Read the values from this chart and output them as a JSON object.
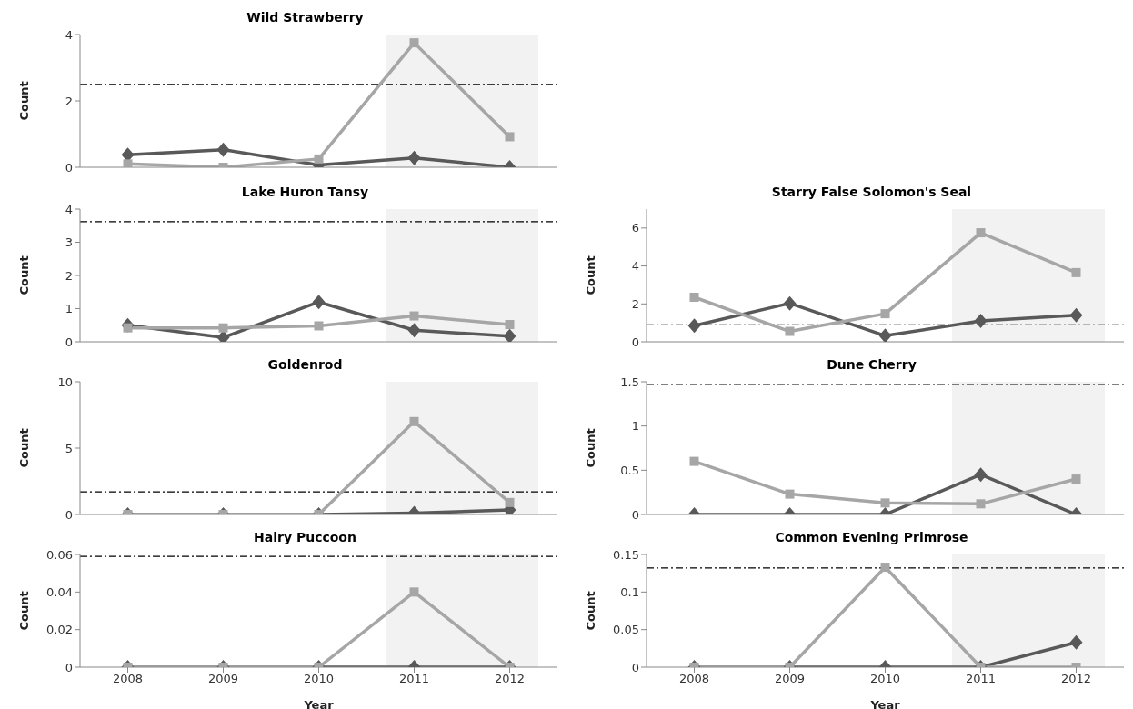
{
  "chart_data": [
    {
      "type": "line",
      "title": "Wild Strawberry",
      "ylabel": "Count",
      "categories": [
        "2008",
        "2009",
        "2010",
        "2011",
        "2012"
      ],
      "ylim": [
        0,
        4
      ],
      "yticks": [
        0,
        2,
        4
      ],
      "tick_labels": "y",
      "grid": false,
      "legend": false,
      "series": [
        {
          "color": "#595959",
          "marker": "diamond",
          "values": [
            0.38,
            0.53,
            0.07,
            0.28,
            0.0
          ]
        },
        {
          "color": "#a6a6a6",
          "marker": "square",
          "values": [
            0.1,
            0.0,
            0.25,
            3.75,
            0.92
          ]
        }
      ],
      "ref_lines": [
        {
          "axis": "y",
          "value": 2.5,
          "color": "#000000",
          "line_style": "dashdot"
        }
      ],
      "bands": [
        {
          "axis": "x",
          "from": "2011",
          "to": "2012",
          "color": "#f2f2f2"
        }
      ]
    },
    {
      "type": "line",
      "title": "Lake Huron Tansy",
      "ylabel": "Count",
      "categories": [
        "2008",
        "2009",
        "2010",
        "2011",
        "2012"
      ],
      "ylim": [
        0,
        4
      ],
      "yticks": [
        0,
        1,
        2,
        3,
        4
      ],
      "tick_labels": "y",
      "grid": false,
      "legend": false,
      "series": [
        {
          "color": "#595959",
          "marker": "diamond",
          "values": [
            0.5,
            0.13,
            1.2,
            0.35,
            0.17
          ]
        },
        {
          "color": "#a6a6a6",
          "marker": "square",
          "values": [
            0.42,
            0.42,
            0.48,
            0.78,
            0.52
          ]
        }
      ],
      "ref_lines": [
        {
          "axis": "y",
          "value": 3.62,
          "color": "#000000",
          "line_style": "dashdot"
        }
      ],
      "bands": [
        {
          "axis": "x",
          "from": "2011",
          "to": "2012",
          "color": "#f2f2f2"
        }
      ]
    },
    {
      "type": "line",
      "title": "Starry False Solomon's Seal",
      "ylabel": "Count",
      "categories": [
        "2008",
        "2009",
        "2010",
        "2011",
        "2012"
      ],
      "ylim": [
        0,
        7
      ],
      "yticks": [
        0,
        2,
        4,
        6
      ],
      "tick_labels": "y",
      "grid": false,
      "legend": false,
      "series": [
        {
          "color": "#595959",
          "marker": "diamond",
          "values": [
            0.85,
            2.03,
            0.32,
            1.1,
            1.4
          ]
        },
        {
          "color": "#a6a6a6",
          "marker": "square",
          "values": [
            2.35,
            0.55,
            1.48,
            5.75,
            3.65
          ]
        }
      ],
      "ref_lines": [
        {
          "axis": "y",
          "value": 0.9,
          "color": "#000000",
          "line_style": "dashdot"
        }
      ],
      "bands": [
        {
          "axis": "x",
          "from": "2011",
          "to": "2012",
          "color": "#f2f2f2"
        }
      ]
    },
    {
      "type": "line",
      "title": "Goldenrod",
      "ylabel": "Count",
      "categories": [
        "2008",
        "2009",
        "2010",
        "2011",
        "2012"
      ],
      "ylim": [
        0,
        10
      ],
      "yticks": [
        0,
        5,
        10
      ],
      "tick_labels": "y",
      "grid": false,
      "legend": false,
      "series": [
        {
          "color": "#595959",
          "marker": "diamond",
          "values": [
            0,
            0,
            0,
            0.1,
            0.35
          ]
        },
        {
          "color": "#a6a6a6",
          "marker": "square",
          "values": [
            0,
            0,
            0,
            7,
            0.9
          ]
        }
      ],
      "ref_lines": [
        {
          "axis": "y",
          "value": 1.7,
          "color": "#000000",
          "line_style": "dashdot"
        }
      ],
      "bands": [
        {
          "axis": "x",
          "from": "2011",
          "to": "2012",
          "color": "#f2f2f2"
        }
      ]
    },
    {
      "type": "line",
      "title": "Dune Cherry",
      "ylabel": "Count",
      "categories": [
        "2008",
        "2009",
        "2010",
        "2011",
        "2012"
      ],
      "ylim": [
        0,
        1.5
      ],
      "yticks": [
        0,
        0.5,
        1,
        1.5
      ],
      "tick_labels": "y",
      "grid": false,
      "legend": false,
      "series": [
        {
          "color": "#595959",
          "marker": "diamond",
          "values": [
            0,
            0,
            0,
            0.45,
            0
          ]
        },
        {
          "color": "#a6a6a6",
          "marker": "square",
          "values": [
            0.6,
            0.23,
            0.13,
            0.12,
            0.4
          ]
        }
      ],
      "ref_lines": [
        {
          "axis": "y",
          "value": 1.47,
          "color": "#000000",
          "line_style": "dashdot"
        }
      ],
      "bands": [
        {
          "axis": "x",
          "from": "2011",
          "to": "2012",
          "color": "#f2f2f2"
        }
      ]
    },
    {
      "type": "line",
      "title": "Hairy Puccoon",
      "xlabel": "Year",
      "ylabel": "Count",
      "categories": [
        "2008",
        "2009",
        "2010",
        "2011",
        "2012"
      ],
      "ylim": [
        0,
        0.06
      ],
      "yticks": [
        0,
        0.02,
        0.04,
        0.06
      ],
      "grid": false,
      "legend": false,
      "series": [
        {
          "color": "#595959",
          "marker": "diamond",
          "values": [
            0,
            0,
            0,
            0,
            0
          ]
        },
        {
          "color": "#a6a6a6",
          "marker": "square",
          "values": [
            0,
            0,
            0,
            0.04,
            0
          ]
        }
      ],
      "ref_lines": [
        {
          "axis": "y",
          "value": 0.059,
          "color": "#000000",
          "line_style": "dashdot"
        }
      ],
      "bands": [
        {
          "axis": "x",
          "from": "2011",
          "to": "2012",
          "color": "#f2f2f2"
        }
      ]
    },
    {
      "type": "line",
      "title": "Common Evening Primrose",
      "xlabel": "Year",
      "ylabel": "Count",
      "categories": [
        "2008",
        "2009",
        "2010",
        "2011",
        "2012"
      ],
      "ylim": [
        0,
        0.15
      ],
      "yticks": [
        0,
        0.05,
        0.1,
        0.15
      ],
      "grid": false,
      "legend": false,
      "series": [
        {
          "color": "#595959",
          "marker": "diamond",
          "values": [
            0,
            0,
            0,
            0,
            0.033
          ]
        },
        {
          "color": "#a6a6a6",
          "marker": "square",
          "values": [
            0,
            0,
            0.133,
            0,
            0
          ]
        }
      ],
      "ref_lines": [
        {
          "axis": "y",
          "value": 0.132,
          "color": "#000000",
          "line_style": "dashdot"
        }
      ],
      "bands": [
        {
          "axis": "x",
          "from": "2011",
          "to": "2012",
          "color": "#f2f2f2"
        }
      ]
    }
  ]
}
